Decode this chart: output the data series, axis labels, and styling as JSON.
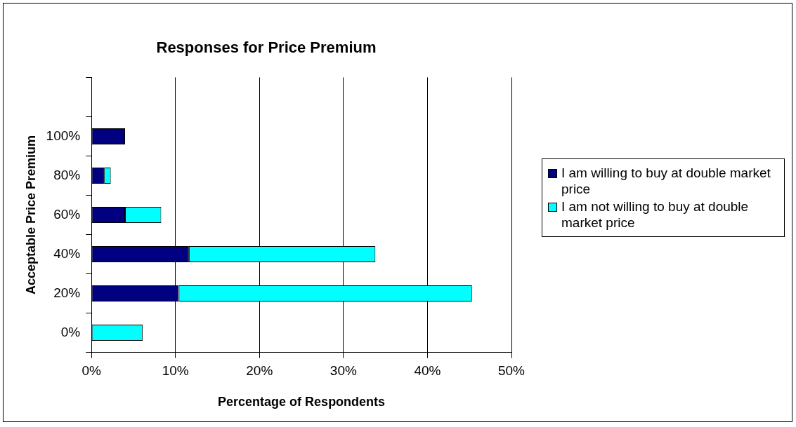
{
  "chart_data": {
    "type": "bar",
    "orientation": "horizontal",
    "stacked": true,
    "title": "Responses for Price Premium",
    "xlabel": "Percentage of Respondents",
    "ylabel": "Acceptable Price Premium",
    "categories": [
      null,
      "100%",
      "80%",
      "60%",
      "40%",
      "20%",
      "0%"
    ],
    "series": [
      {
        "name": "I am willing to buy at double market price",
        "color": "#000080",
        "values": [
          null,
          4.0,
          1.5,
          4.0,
          11.6,
          10.4,
          0
        ]
      },
      {
        "name": "I am not willing to buy at double market price",
        "color": "#00ffff",
        "values": [
          null,
          0,
          0.8,
          4.3,
          22.2,
          34.9,
          6.1
        ]
      }
    ],
    "xlim": [
      0,
      50
    ],
    "xticks": [
      {
        "value": 0,
        "label": "0%"
      },
      {
        "value": 10,
        "label": "10%"
      },
      {
        "value": 20,
        "label": "20%"
      },
      {
        "value": 30,
        "label": "30%"
      },
      {
        "value": 40,
        "label": "40%"
      },
      {
        "value": 50,
        "label": "50%"
      }
    ],
    "grid": "x",
    "legend": "right"
  }
}
